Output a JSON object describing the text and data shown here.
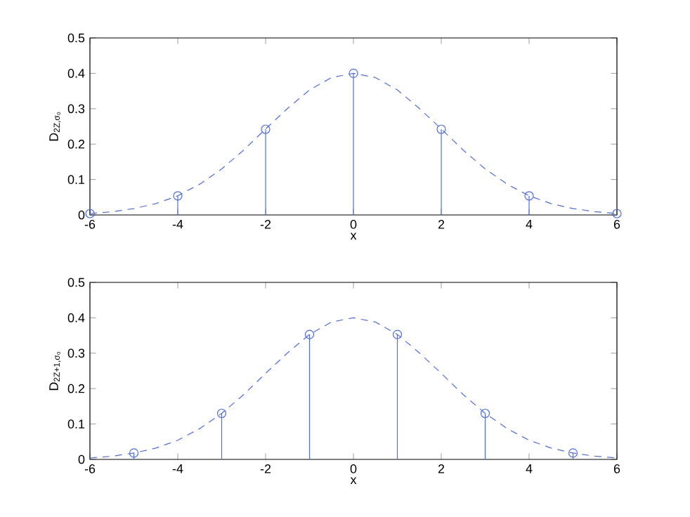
{
  "chart_data": [
    {
      "type": "lollipop",
      "xlabel": "x",
      "ylabel": "D$_{2Z,σ₀}$",
      "xlim": [
        -6,
        6
      ],
      "ylim": [
        0,
        0.5
      ],
      "xticks": [
        -6,
        -4,
        -2,
        0,
        2,
        4,
        6
      ],
      "yticks": [
        0,
        0.1,
        0.2,
        0.3,
        0.4,
        0.5
      ],
      "series": [
        {
          "color": "#4d6bff",
          "marker": "circle",
          "x": [
            -6,
            -4,
            -2,
            0,
            2,
            4,
            6
          ],
          "values": [
            0.004,
            0.054,
            0.242,
            0.4,
            0.242,
            0.054,
            0.004
          ]
        },
        {
          "type": "line",
          "color": "#4d6bff",
          "line_style": "dashed",
          "marker": "none",
          "x": [
            -6,
            -5.5,
            -5,
            -4.5,
            -4,
            -3.5,
            -3,
            -2.5,
            -2,
            -1.5,
            -1,
            -0.5,
            0,
            0.5,
            1,
            1.5,
            2,
            2.5,
            3,
            3.5,
            4,
            4.5,
            5,
            5.5,
            6
          ],
          "values": [
            0.004,
            0.009,
            0.018,
            0.032,
            0.054,
            0.087,
            0.13,
            0.183,
            0.243,
            0.301,
            0.353,
            0.388,
            0.4,
            0.388,
            0.353,
            0.301,
            0.243,
            0.183,
            0.13,
            0.087,
            0.054,
            0.032,
            0.018,
            0.009,
            0.004
          ]
        }
      ]
    },
    {
      "type": "lollipop",
      "xlabel": "x",
      "ylabel": "D$_{2Z+1,σ₀}$",
      "xlim": [
        -6,
        6
      ],
      "ylim": [
        0,
        0.5
      ],
      "xticks": [
        -6,
        -4,
        -2,
        0,
        2,
        4,
        6
      ],
      "yticks": [
        0,
        0.1,
        0.2,
        0.3,
        0.4,
        0.5
      ],
      "series": [
        {
          "color": "#4d6bff",
          "marker": "circle",
          "x": [
            -5,
            -3,
            -1,
            1,
            3,
            5
          ],
          "values": [
            0.018,
            0.13,
            0.353,
            0.353,
            0.13,
            0.018
          ]
        },
        {
          "type": "line",
          "color": "#4d6bff",
          "line_style": "dashed",
          "marker": "none",
          "x": [
            -6,
            -5.5,
            -5,
            -4.5,
            -4,
            -3.5,
            -3,
            -2.5,
            -2,
            -1.5,
            -1,
            -0.5,
            0,
            0.5,
            1,
            1.5,
            2,
            2.5,
            3,
            3.5,
            4,
            4.5,
            5,
            5.5,
            6
          ],
          "values": [
            0.004,
            0.009,
            0.018,
            0.032,
            0.054,
            0.087,
            0.13,
            0.183,
            0.243,
            0.301,
            0.353,
            0.388,
            0.4,
            0.388,
            0.353,
            0.301,
            0.243,
            0.183,
            0.13,
            0.087,
            0.054,
            0.032,
            0.018,
            0.009,
            0.004
          ]
        }
      ]
    }
  ]
}
